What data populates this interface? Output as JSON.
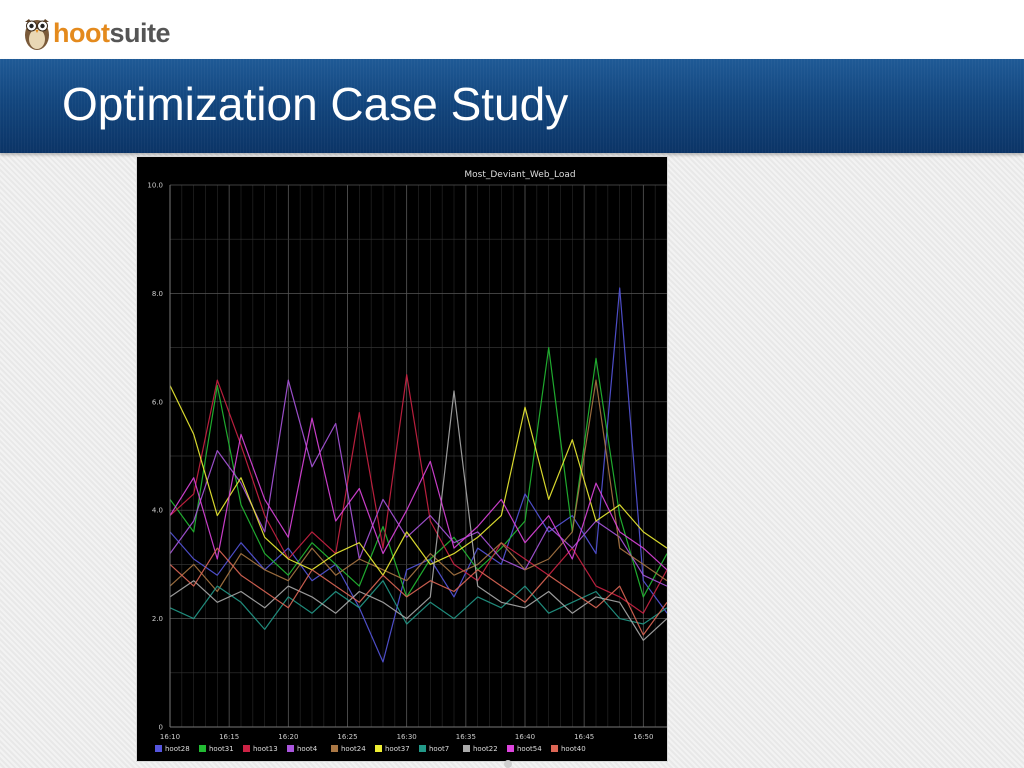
{
  "logo": {
    "part1": "hoot",
    "part2": "suite"
  },
  "slide": {
    "title": "Optimization Case Study"
  },
  "colors": {
    "banner": "#13467e",
    "chart_bg": "#000000",
    "grid": "#555555"
  },
  "chart_data": {
    "type": "line",
    "title": "Most_Deviant_Web_Load",
    "xlabel": "",
    "ylabel": "",
    "x_ticks": [
      "16:10",
      "16:15",
      "16:20",
      "16:25",
      "16:30",
      "16:35",
      "16:40",
      "16:45",
      "16:50"
    ],
    "xlim": [
      "16:10",
      "16:52"
    ],
    "y_ticks": [
      "0",
      "2.0",
      "4.0",
      "6.0",
      "8.0",
      "10.0"
    ],
    "ylim": [
      0,
      10
    ],
    "grid": true,
    "legend": "bottom",
    "x": [
      "16:10",
      "16:12",
      "16:14",
      "16:16",
      "16:18",
      "16:20",
      "16:22",
      "16:24",
      "16:26",
      "16:28",
      "16:30",
      "16:32",
      "16:34",
      "16:36",
      "16:38",
      "16:40",
      "16:42",
      "16:44",
      "16:46",
      "16:48",
      "16:50",
      "16:52"
    ],
    "series": [
      {
        "name": "hoot28",
        "color": "#5555dd",
        "values": [
          3.6,
          3.1,
          2.8,
          3.4,
          2.9,
          3.3,
          2.7,
          3.0,
          2.2,
          1.2,
          2.9,
          3.1,
          2.4,
          3.3,
          3.0,
          4.3,
          3.6,
          3.9,
          3.2,
          8.1,
          2.7,
          2.1
        ]
      },
      {
        "name": "hoot31",
        "color": "#22bb33",
        "values": [
          4.2,
          3.6,
          6.3,
          4.1,
          3.2,
          2.8,
          3.4,
          3.0,
          2.6,
          3.7,
          2.4,
          3.1,
          3.5,
          2.9,
          3.3,
          3.8,
          7.0,
          3.6,
          6.8,
          3.9,
          2.4,
          3.2
        ]
      },
      {
        "name": "hoot13",
        "color": "#cc2244",
        "values": [
          3.9,
          4.3,
          6.4,
          5.2,
          3.9,
          3.1,
          3.6,
          3.2,
          5.8,
          3.3,
          6.5,
          3.8,
          3.0,
          2.7,
          3.4,
          3.1,
          2.8,
          3.3,
          2.6,
          2.4,
          2.1,
          2.9
        ]
      },
      {
        "name": "hoot4",
        "color": "#aa55dd",
        "values": [
          3.2,
          3.8,
          5.1,
          4.5,
          3.6,
          6.4,
          4.8,
          5.6,
          3.1,
          4.2,
          3.5,
          3.9,
          3.4,
          3.6,
          3.1,
          2.9,
          3.7,
          3.3,
          3.8,
          3.5,
          2.8,
          2.6
        ]
      },
      {
        "name": "hoot24",
        "color": "#aa7744",
        "values": [
          2.6,
          3.0,
          2.5,
          3.2,
          2.9,
          2.7,
          3.3,
          2.8,
          3.1,
          2.9,
          2.7,
          3.2,
          2.8,
          3.0,
          3.4,
          2.9,
          3.1,
          3.6,
          6.4,
          3.3,
          3.0,
          2.7
        ]
      },
      {
        "name": "hoot37",
        "color": "#eeee33",
        "values": [
          6.3,
          5.4,
          3.9,
          4.6,
          3.5,
          3.1,
          2.9,
          3.2,
          3.4,
          2.8,
          3.6,
          3.0,
          3.2,
          3.5,
          3.9,
          5.9,
          4.2,
          5.3,
          3.8,
          4.1,
          3.6,
          3.3
        ]
      },
      {
        "name": "hoot7",
        "color": "#229988",
        "values": [
          2.2,
          2.0,
          2.6,
          2.3,
          1.8,
          2.4,
          2.1,
          2.5,
          2.2,
          2.7,
          1.9,
          2.3,
          2.0,
          2.4,
          2.2,
          2.6,
          2.1,
          2.3,
          2.5,
          2.0,
          1.9,
          2.2
        ]
      },
      {
        "name": "hoot22",
        "color": "#aaaaaa",
        "values": [
          2.4,
          2.7,
          2.3,
          2.5,
          2.2,
          2.6,
          2.4,
          2.1,
          2.5,
          2.3,
          2.0,
          2.4,
          6.2,
          2.6,
          2.3,
          2.2,
          2.5,
          2.1,
          2.4,
          2.3,
          1.6,
          2.0
        ]
      },
      {
        "name": "hoot54",
        "color": "#dd44dd",
        "values": [
          3.9,
          4.6,
          3.1,
          5.4,
          4.2,
          3.5,
          5.7,
          3.8,
          4.4,
          3.2,
          4.0,
          4.9,
          3.3,
          3.7,
          4.2,
          3.4,
          3.9,
          3.1,
          4.5,
          3.6,
          3.3,
          2.9
        ]
      },
      {
        "name": "hoot40",
        "color": "#dd6655",
        "values": [
          3.0,
          2.6,
          3.3,
          2.8,
          2.5,
          2.2,
          2.9,
          2.6,
          2.3,
          2.8,
          2.4,
          2.7,
          2.5,
          2.9,
          2.6,
          2.3,
          2.8,
          2.5,
          2.2,
          2.6,
          1.7,
          2.3
        ]
      }
    ]
  }
}
